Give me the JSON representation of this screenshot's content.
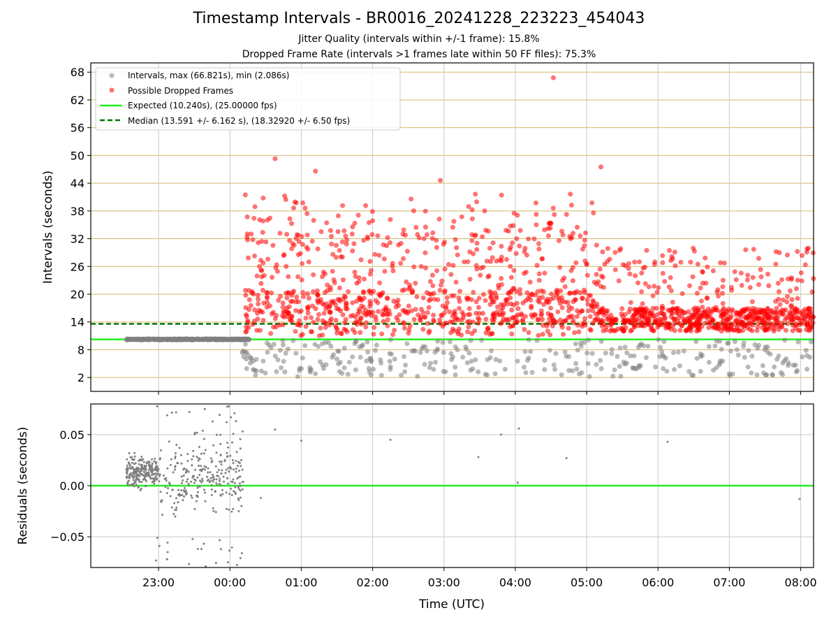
{
  "title": "Timestamp Intervals - BR0016_20241228_223223_454043",
  "subtitle_1": "Jitter Quality (intervals within +/-1 frame): 15.8%",
  "subtitle_2": "Dropped Frame Rate (intervals >1 frames late within 50 FF files): 75.3%",
  "colors": {
    "intervals": "#808080",
    "dropped": "#ff0000",
    "expected": "#22ee22",
    "median": "#007700",
    "top_grid": "#d4b86a",
    "grid": "#c8c8c8"
  },
  "chart_data": [
    {
      "type": "scatter",
      "name": "intervals",
      "ylabel": "Intervals (seconds)",
      "xlabel": "",
      "y_ticks": [
        2,
        8,
        14,
        20,
        26,
        32,
        38,
        44,
        50,
        56,
        62,
        68
      ],
      "ylim": [
        -1,
        70
      ],
      "x_ticks": [
        "23:00",
        "00:00",
        "01:00",
        "02:00",
        "03:00",
        "04:00",
        "05:00",
        "06:00",
        "07:00",
        "08:00"
      ],
      "xlim_hours_from_23": [
        -0.95,
        9.18
      ],
      "grid": true,
      "legend_position": "upper-left",
      "legend": [
        "Intervals, max (66.821s), min (2.086s)",
        "Possible Dropped Frames",
        "Expected (10.240s), (25.00000 fps)",
        "Median (13.591 +/- 6.162 s), (18.32920 +/- 6.50 fps)"
      ],
      "expected_line_value": 10.24,
      "median_line_value": 13.591,
      "series": [
        {
          "name": "Intervals",
          "description_range_seconds": [
            2.086,
            66.821
          ]
        },
        {
          "name": "Possible Dropped Frames"
        }
      ],
      "notable_points": [
        {
          "time": "04:32",
          "value": 66.8
        },
        {
          "time": "00:38",
          "value": 49.3
        },
        {
          "time": "01:12",
          "value": 46.6
        },
        {
          "time": "05:12",
          "value": 47.5
        },
        {
          "time": "02:57",
          "value": 44.6
        }
      ]
    },
    {
      "type": "scatter",
      "name": "residuals",
      "ylabel": "Residuals (seconds)",
      "xlabel": "Time (UTC)",
      "y_ticks": [
        0.05,
        0.0,
        -0.05
      ],
      "y_tick_labels": [
        "0.05",
        "0.00",
        "−0.05"
      ],
      "ylim": [
        -0.08,
        0.08
      ],
      "x_ticks": [
        "23:00",
        "00:00",
        "01:00",
        "02:00",
        "03:00",
        "04:00",
        "05:00",
        "06:00",
        "07:00",
        "08:00"
      ],
      "xlim_hours_from_23": [
        -0.95,
        9.18
      ],
      "zero_line": 0.0,
      "grid": true,
      "isolated_points": [
        {
          "time": "00:26",
          "value": -0.012
        },
        {
          "time": "00:38",
          "value": 0.055
        },
        {
          "time": "01:00",
          "value": 0.044
        },
        {
          "time": "02:15",
          "value": 0.045
        },
        {
          "time": "03:29",
          "value": 0.028
        },
        {
          "time": "03:48",
          "value": 0.05
        },
        {
          "time": "04:02",
          "value": 0.003
        },
        {
          "time": "04:03",
          "value": 0.056
        },
        {
          "time": "04:43",
          "value": 0.027
        },
        {
          "time": "06:08",
          "value": 0.043
        },
        {
          "time": "07:59",
          "value": -0.013
        }
      ]
    }
  ]
}
